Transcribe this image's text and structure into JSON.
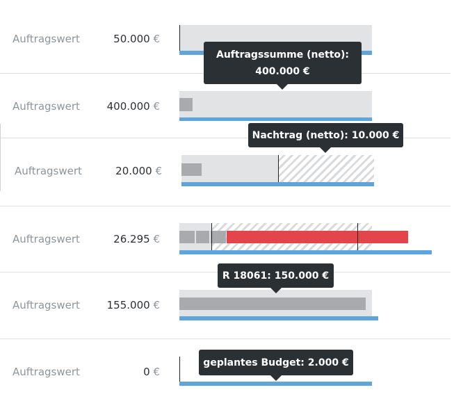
{
  "rows": [
    {
      "label": "Auftragswert",
      "amount": "50.000",
      "currency": "€"
    },
    {
      "label": "Auftragswert",
      "amount": "400.000",
      "currency": "€"
    },
    {
      "label": "Auftragswert",
      "amount": "20.000",
      "currency": "€"
    },
    {
      "label": "Auftragswert",
      "amount": "26.295",
      "currency": "€"
    },
    {
      "label": "Auftragswert",
      "amount": "155.000",
      "currency": "€"
    },
    {
      "label": "Auftragswert",
      "amount": "0",
      "currency": "€"
    }
  ],
  "tooltips": [
    {
      "lines": [
        "Auftragssumme (netto):",
        "400.000 €"
      ]
    },
    {
      "lines": [
        "Nachtrag (netto): 10.000 €"
      ]
    },
    {
      "lines": [
        "R 18061: 150.000 €"
      ]
    },
    {
      "lines": [
        "geplantes Budget: 2.000 €"
      ]
    }
  ]
}
